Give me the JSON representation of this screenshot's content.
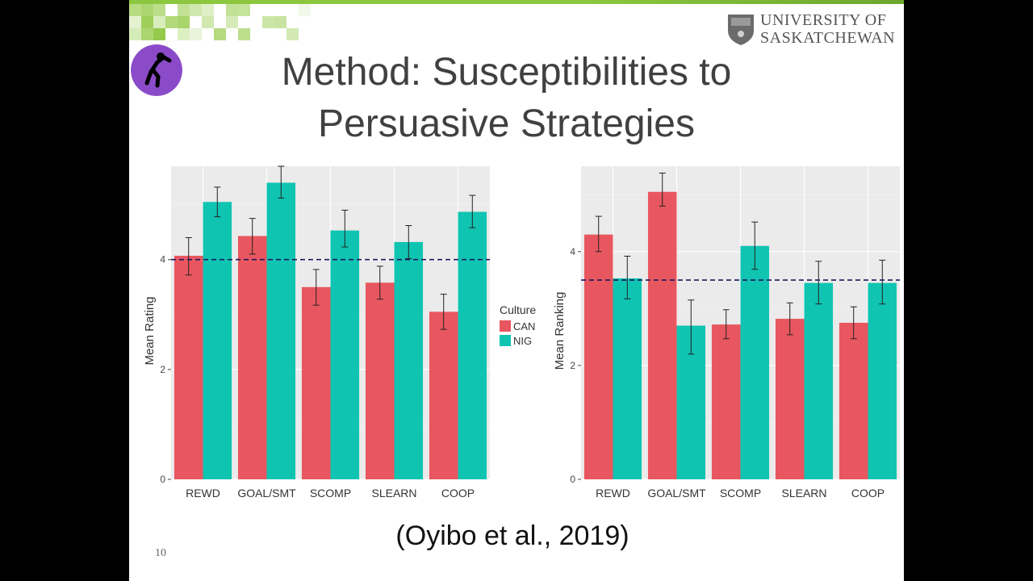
{
  "slide": {
    "title_line1": "Method: Susceptibilities to",
    "title_line2": "Persuasive Strategies",
    "university_line1": "UNIVERSITY OF",
    "university_line2": "SASKATCHEWAN",
    "citation": "(Oyibo et al., 2019)",
    "slide_number": "10"
  },
  "colors": {
    "CAN": "#e8575f",
    "NIG": "#10c4b2",
    "panel": "#ebebeb",
    "grid": "#ffffff",
    "reference_line": "#1a1a5e",
    "accent": "#8dc63f"
  },
  "chart_data": [
    {
      "type": "bar",
      "ylabel": "Mean Rating",
      "xlabel": "",
      "categories": [
        "REWD",
        "GOAL/SMT",
        "SCOMP",
        "SLEARN",
        "COOP"
      ],
      "ylim": [
        0,
        5.7
      ],
      "yticks": [
        0,
        2,
        4
      ],
      "reference_line": 4.0,
      "legend": {
        "title": "Culture",
        "placement": "right"
      },
      "series": [
        {
          "name": "CAN",
          "values": [
            4.07,
            4.43,
            3.5,
            3.58,
            3.05
          ],
          "err_low": [
            3.72,
            4.1,
            3.17,
            3.28,
            2.73
          ],
          "err_high": [
            4.4,
            4.75,
            3.82,
            3.88,
            3.37
          ]
        },
        {
          "name": "NIG",
          "values": [
            5.05,
            5.4,
            4.53,
            4.32,
            4.87
          ],
          "err_low": [
            4.78,
            5.12,
            4.23,
            4.02,
            4.58
          ],
          "err_high": [
            5.32,
            5.7,
            4.9,
            4.62,
            5.17
          ]
        }
      ]
    },
    {
      "type": "bar",
      "ylabel": "Mean Ranking",
      "xlabel": "",
      "categories": [
        "REWD",
        "GOAL/SMT",
        "SCOMP",
        "SLEARN",
        "COOP"
      ],
      "ylim": [
        0,
        5.5
      ],
      "yticks": [
        0,
        2,
        4
      ],
      "reference_line": 3.5,
      "legend": {
        "title": "Culture",
        "placement": "none"
      },
      "series": [
        {
          "name": "CAN",
          "values": [
            4.3,
            5.05,
            2.72,
            2.82,
            2.75
          ],
          "err_low": [
            4.0,
            4.8,
            2.47,
            2.54,
            2.47
          ],
          "err_high": [
            4.62,
            5.38,
            2.98,
            3.1,
            3.03
          ]
        },
        {
          "name": "NIG",
          "values": [
            3.53,
            2.7,
            4.1,
            3.45,
            3.45
          ],
          "err_low": [
            3.17,
            2.2,
            3.69,
            3.08,
            3.08
          ],
          "err_high": [
            3.92,
            3.15,
            4.52,
            3.83,
            3.85
          ]
        }
      ]
    }
  ]
}
